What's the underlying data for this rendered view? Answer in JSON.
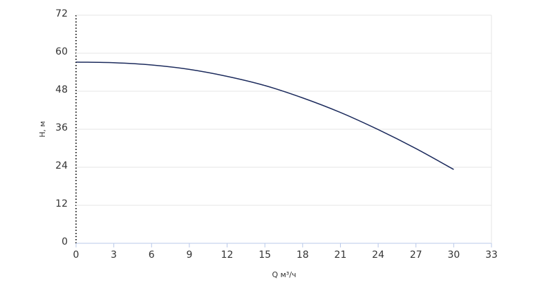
{
  "chart_data": {
    "type": "line",
    "x_label": "Q м³/ч",
    "y_label": "H, м",
    "x": [
      0,
      3,
      6,
      9,
      12,
      15,
      18,
      21,
      24,
      27,
      30
    ],
    "series": [
      {
        "color": "#1b2a5c",
        "values": [
          57.2,
          57.0,
          56.3,
          54.9,
          52.7,
          49.8,
          45.9,
          41.3,
          35.9,
          29.9,
          23.3
        ]
      }
    ],
    "xlim": [
      0,
      33
    ],
    "xticks": [
      0,
      3,
      6,
      9,
      12,
      15,
      18,
      21,
      24,
      27,
      30,
      33
    ],
    "ylim": [
      0,
      72
    ],
    "yticks": [
      0,
      12,
      24,
      36,
      48,
      60,
      72
    ],
    "grid": true
  }
}
